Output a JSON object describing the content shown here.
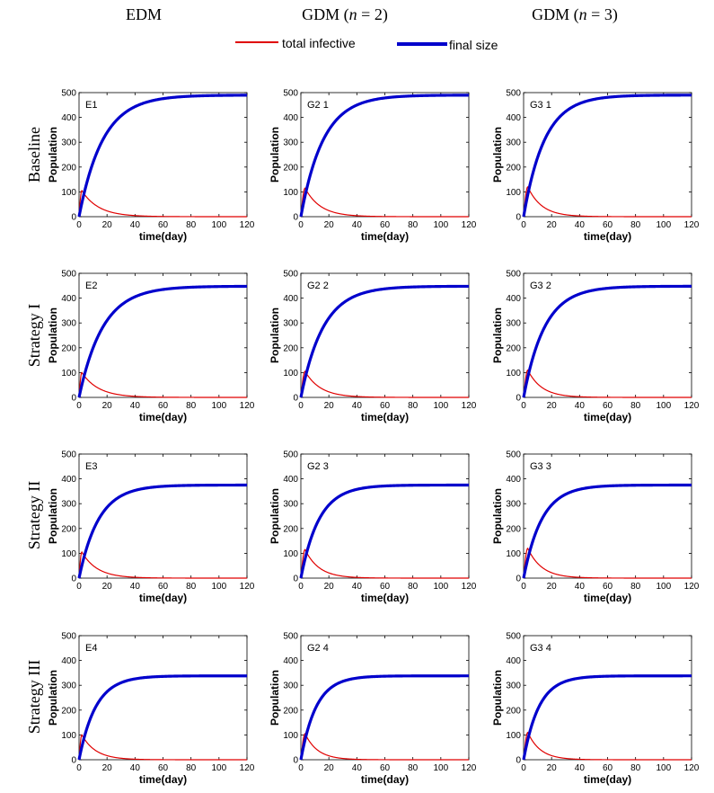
{
  "column_headers": [
    {
      "main": "EDM",
      "suffix": ""
    },
    {
      "main": "GDM (",
      "italic": "n",
      "suffix": " = 2)"
    },
    {
      "main": "GDM (",
      "italic": "n",
      "suffix": " = 3)"
    }
  ],
  "row_headers": [
    "Baseline",
    "Strategy I",
    "Strategy II",
    "Strategy III"
  ],
  "legend": {
    "items": [
      {
        "label": "total infective",
        "color": "#e00000"
      },
      {
        "label": "final size",
        "color": "#0000cc"
      }
    ]
  },
  "colors": {
    "infective": "#e00000",
    "final_size": "#0000cc",
    "axis": "#000000"
  },
  "chart_data": [
    {
      "type": "line",
      "panel_label": "E1",
      "xlabel": "time(day)",
      "ylabel": "Population",
      "xlim": [
        0,
        120
      ],
      "ylim": [
        0,
        500
      ],
      "xticks": [
        0,
        20,
        40,
        60,
        80,
        100,
        120
      ],
      "yticks": [
        0,
        100,
        200,
        300,
        400,
        500
      ],
      "series": [
        {
          "name": "total infective",
          "peak": 105,
          "peak_day": 2,
          "decay_days": 12
        },
        {
          "name": "final size",
          "final": 490,
          "rise_days": 17
        }
      ]
    },
    {
      "type": "line",
      "panel_label": "G2 1",
      "xlabel": "time(day)",
      "ylabel": "Population",
      "xlim": [
        0,
        120
      ],
      "ylim": [
        0,
        500
      ],
      "xticks": [
        0,
        20,
        40,
        60,
        80,
        100,
        120
      ],
      "yticks": [
        0,
        100,
        200,
        300,
        400,
        500
      ],
      "series": [
        {
          "name": "total infective",
          "peak": 115,
          "peak_day": 3,
          "decay_days": 11
        },
        {
          "name": "final size",
          "final": 490,
          "rise_days": 16
        }
      ]
    },
    {
      "type": "line",
      "panel_label": "G3 1",
      "xlabel": "time(day)",
      "ylabel": "Population",
      "xlim": [
        0,
        120
      ],
      "ylim": [
        0,
        500
      ],
      "xticks": [
        0,
        20,
        40,
        60,
        80,
        100,
        120
      ],
      "yticks": [
        0,
        100,
        200,
        300,
        400,
        500
      ],
      "series": [
        {
          "name": "total infective",
          "peak": 120,
          "peak_day": 3,
          "decay_days": 10
        },
        {
          "name": "final size",
          "final": 490,
          "rise_days": 15
        }
      ]
    },
    {
      "type": "line",
      "panel_label": "E2",
      "xlabel": "time(day)",
      "ylabel": "Population",
      "xlim": [
        0,
        120
      ],
      "ylim": [
        0,
        500
      ],
      "xticks": [
        0,
        20,
        40,
        60,
        80,
        100,
        120
      ],
      "yticks": [
        0,
        100,
        200,
        300,
        400,
        500
      ],
      "series": [
        {
          "name": "total infective",
          "peak": 100,
          "peak_day": 2,
          "decay_days": 12
        },
        {
          "name": "final size",
          "final": 448,
          "rise_days": 17
        }
      ]
    },
    {
      "type": "line",
      "panel_label": "G2 2",
      "xlabel": "time(day)",
      "ylabel": "Population",
      "xlim": [
        0,
        120
      ],
      "ylim": [
        0,
        500
      ],
      "xticks": [
        0,
        20,
        40,
        60,
        80,
        100,
        120
      ],
      "yticks": [
        0,
        100,
        200,
        300,
        400,
        500
      ],
      "series": [
        {
          "name": "total infective",
          "peak": 105,
          "peak_day": 3,
          "decay_days": 11
        },
        {
          "name": "final size",
          "final": 448,
          "rise_days": 16
        }
      ]
    },
    {
      "type": "line",
      "panel_label": "G3 2",
      "xlabel": "time(day)",
      "ylabel": "Population",
      "xlim": [
        0,
        120
      ],
      "ylim": [
        0,
        500
      ],
      "xticks": [
        0,
        20,
        40,
        60,
        80,
        100,
        120
      ],
      "yticks": [
        0,
        100,
        200,
        300,
        400,
        500
      ],
      "series": [
        {
          "name": "total infective",
          "peak": 110,
          "peak_day": 3,
          "decay_days": 10
        },
        {
          "name": "final size",
          "final": 448,
          "rise_days": 15
        }
      ]
    },
    {
      "type": "line",
      "panel_label": "E3",
      "xlabel": "time(day)",
      "ylabel": "Population",
      "xlim": [
        0,
        120
      ],
      "ylim": [
        0,
        500
      ],
      "xticks": [
        0,
        20,
        40,
        60,
        80,
        100,
        120
      ],
      "yticks": [
        0,
        100,
        200,
        300,
        400,
        500
      ],
      "series": [
        {
          "name": "total infective",
          "peak": 105,
          "peak_day": 2,
          "decay_days": 11
        },
        {
          "name": "final size",
          "final": 375,
          "rise_days": 14
        }
      ]
    },
    {
      "type": "line",
      "panel_label": "G2 3",
      "xlabel": "time(day)",
      "ylabel": "Population",
      "xlim": [
        0,
        120
      ],
      "ylim": [
        0,
        500
      ],
      "xticks": [
        0,
        20,
        40,
        60,
        80,
        100,
        120
      ],
      "yticks": [
        0,
        100,
        200,
        300,
        400,
        500
      ],
      "series": [
        {
          "name": "total infective",
          "peak": 115,
          "peak_day": 3,
          "decay_days": 10
        },
        {
          "name": "final size",
          "final": 375,
          "rise_days": 13
        }
      ]
    },
    {
      "type": "line",
      "panel_label": "G3 3",
      "xlabel": "time(day)",
      "ylabel": "Population",
      "xlim": [
        0,
        120
      ],
      "ylim": [
        0,
        500
      ],
      "xticks": [
        0,
        20,
        40,
        60,
        80,
        100,
        120
      ],
      "yticks": [
        0,
        100,
        200,
        300,
        400,
        500
      ],
      "series": [
        {
          "name": "total infective",
          "peak": 120,
          "peak_day": 3,
          "decay_days": 10
        },
        {
          "name": "final size",
          "final": 375,
          "rise_days": 13
        }
      ]
    },
    {
      "type": "line",
      "panel_label": "E4",
      "xlabel": "time(day)",
      "ylabel": "Population",
      "xlim": [
        0,
        120
      ],
      "ylim": [
        0,
        500
      ],
      "xticks": [
        0,
        20,
        40,
        60,
        80,
        100,
        120
      ],
      "yticks": [
        0,
        100,
        200,
        300,
        400,
        500
      ],
      "series": [
        {
          "name": "total infective",
          "peak": 100,
          "peak_day": 2,
          "decay_days": 10
        },
        {
          "name": "final size",
          "final": 338,
          "rise_days": 12
        }
      ]
    },
    {
      "type": "line",
      "panel_label": "G2 4",
      "xlabel": "time(day)",
      "ylabel": "Population",
      "xlim": [
        0,
        120
      ],
      "ylim": [
        0,
        500
      ],
      "xticks": [
        0,
        20,
        40,
        60,
        80,
        100,
        120
      ],
      "yticks": [
        0,
        100,
        200,
        300,
        400,
        500
      ],
      "series": [
        {
          "name": "total infective",
          "peak": 105,
          "peak_day": 3,
          "decay_days": 9
        },
        {
          "name": "final size",
          "final": 338,
          "rise_days": 11
        }
      ]
    },
    {
      "type": "line",
      "panel_label": "G3 4",
      "xlabel": "time(day)",
      "ylabel": "Population",
      "xlim": [
        0,
        120
      ],
      "ylim": [
        0,
        500
      ],
      "xticks": [
        0,
        20,
        40,
        60,
        80,
        100,
        120
      ],
      "yticks": [
        0,
        100,
        200,
        300,
        400,
        500
      ],
      "series": [
        {
          "name": "total infective",
          "peak": 110,
          "peak_day": 3,
          "decay_days": 9
        },
        {
          "name": "final size",
          "final": 338,
          "rise_days": 11
        }
      ]
    }
  ]
}
